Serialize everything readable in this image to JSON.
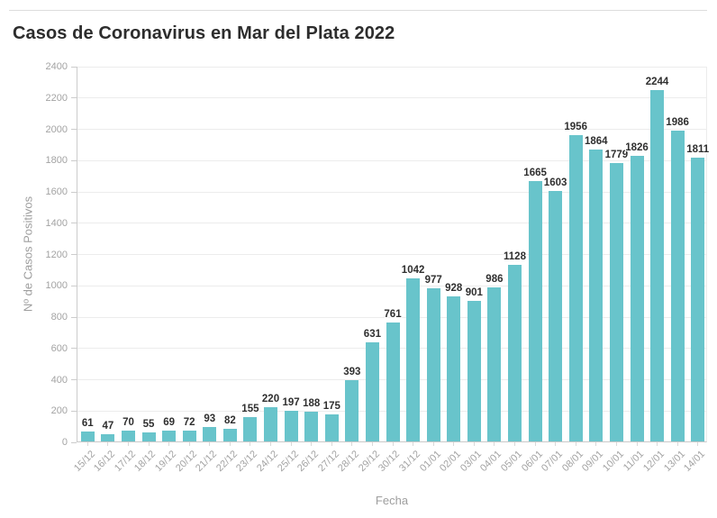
{
  "chart_data": {
    "type": "bar",
    "title": "Casos de Coronavirus en Mar del Plata 2022",
    "xlabel": "Fecha",
    "ylabel": "Nº de Casos Positivos",
    "categories": [
      "15/12",
      "16/12",
      "17/12",
      "18/12",
      "19/12",
      "20/12",
      "21/12",
      "22/12",
      "23/12",
      "24/12",
      "25/12",
      "26/12",
      "27/12",
      "28/12",
      "29/12",
      "30/12",
      "31/12",
      "01/01",
      "02/01",
      "03/01",
      "04/01",
      "05/01",
      "06/01",
      "07/01",
      "08/01",
      "09/01",
      "10/01",
      "11/01",
      "12/01",
      "13/01",
      "14/01"
    ],
    "values": [
      61,
      47,
      70,
      55,
      69,
      72,
      93,
      82,
      155,
      220,
      197,
      188,
      175,
      393,
      631,
      761,
      1042,
      977,
      928,
      901,
      986,
      1128,
      1665,
      1603,
      1956,
      1864,
      1779,
      1826,
      2244,
      1986,
      1811
    ],
    "ylim": [
      0,
      2400
    ],
    "yticks": [
      0,
      200,
      400,
      600,
      800,
      1000,
      1200,
      1400,
      1600,
      1800,
      2000,
      2200,
      2400
    ],
    "grid": "horizontal",
    "legend": "none",
    "value_labels": "above-bars",
    "colors": {
      "bar": "#68c4cb",
      "value_label": "#2f2f2f",
      "axis_text": "#a3a3a3",
      "gridline": "#ececec",
      "axis_line": "#cccccc",
      "x_tick": "#d9d9d9"
    }
  }
}
